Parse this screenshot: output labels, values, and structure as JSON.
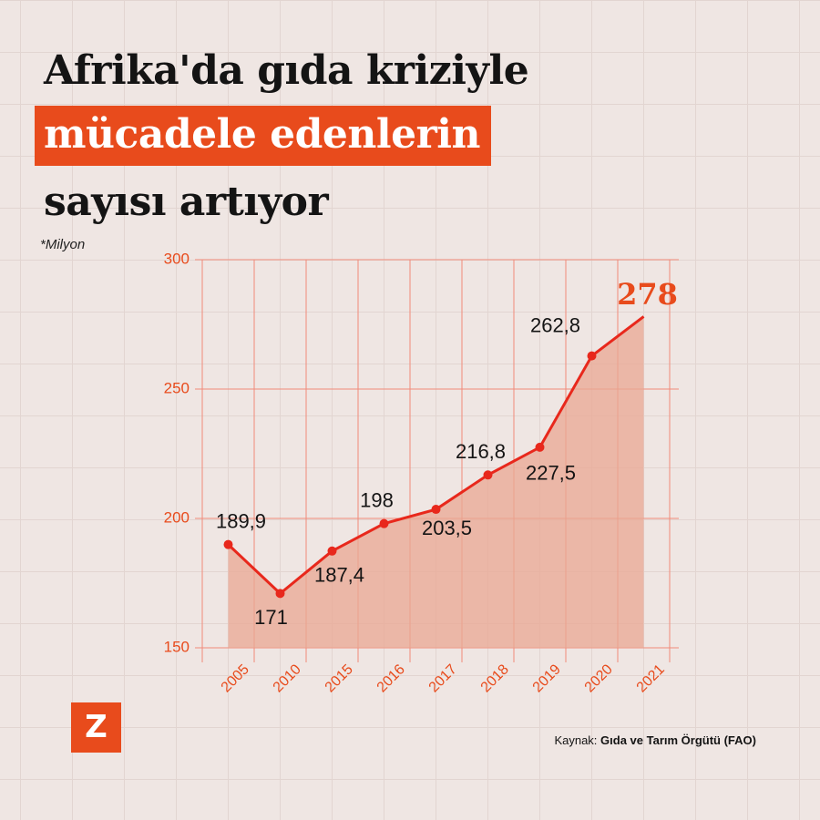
{
  "chart_data": {
    "type": "line",
    "title": [
      "Afrika'da gıda kriziyle",
      "mücadele edenlerin",
      "sayısı artıyor"
    ],
    "subtitle": "*Milyon",
    "categories": [
      "2005",
      "2010",
      "2015",
      "2016",
      "2017",
      "2018",
      "2019",
      "2020",
      "2021"
    ],
    "values": [
      189.9,
      171,
      187.4,
      198,
      203.5,
      216.8,
      227.5,
      262.8,
      278
    ],
    "value_labels": [
      "189,9",
      "171",
      "187,4",
      "198",
      "203,5",
      "216,8",
      "227,5",
      "262,8",
      "278"
    ],
    "color": "#e8281c",
    "area_color": "#e9a793",
    "ylim": [
      150,
      300
    ],
    "yticks": [
      150,
      200,
      250,
      300
    ],
    "grid": true,
    "source_label": "Kaynak:",
    "source": "Gıda ve Tarım Örgütü (FAO)",
    "logo": "Z"
  }
}
